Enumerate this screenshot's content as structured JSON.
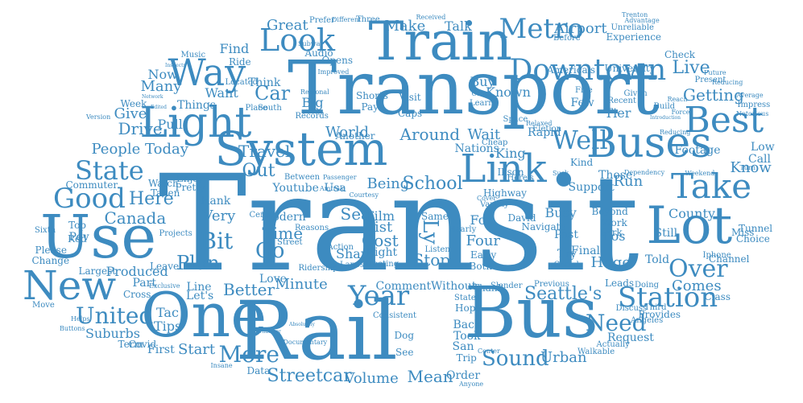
{
  "word_color": "#3d8bc0",
  "words": [
    "Transit",
    "Transport",
    "Rail",
    "Bus",
    "Train",
    "One",
    "Use",
    "Lot",
    "System",
    "Light",
    "Buses",
    "New",
    "Link",
    "Best",
    "Take",
    "Way",
    "Metro",
    "Downtown",
    "Station",
    "Look",
    "Good",
    "Year",
    "Over",
    "State",
    "Well",
    "Seattle's",
    "United",
    "More",
    "Need",
    "Sound",
    "Bit",
    "Car",
    "Live",
    "Streetcar",
    "Plan",
    "Better",
    "Go",
    "Getting",
    "Here",
    "Around",
    "School",
    "Stop",
    "Minute",
    "Ly",
    "Very",
    "Time",
    "Cost",
    "Mean",
    "World",
    "Make",
    "Great",
    "Travel",
    "Drive",
    "Give",
    "Canada",
    "People",
    "Today",
    "Airport",
    "Wait",
    "Urban",
    "Know",
    "County",
    "Comes",
    "Start",
    "Being",
    "Sea",
    "List",
    "Find",
    "Many",
    "Want",
    "Volume",
    "Tac",
    "Run",
    "Out",
    "Tips",
    "Suburbs",
    "Pov",
    "Film",
    "Fox",
    "Four",
    "Busy",
    "Los",
    "Huge",
    "Youtube",
    "Usa",
    "Nations",
    "King",
    "Rapid",
    "Known",
    "Buy",
    "Talk",
    "Channel",
    "Tunnel",
    "Low",
    "Call",
    "Tier",
    "Few",
    "Those",
    "Support",
    "Kind",
    "Told",
    "Still",
    "Miss",
    "Choice",
    "Beyond",
    "Work",
    "Park",
    "Final",
    "Try",
    "Past",
    "Navigate",
    "David",
    "Same",
    "Nearly",
    "Early",
    "Both",
    "Chord",
    "Leads",
    "Doing",
    "Third",
    "Angeles",
    "Provides",
    "Class",
    "Request",
    "Actually",
    "Walkable",
    "Discuss",
    "Previous",
    "Thank",
    "Slender",
    "Hope",
    "States",
    "Back",
    "Took",
    "San",
    "Trip",
    "Order",
    "See",
    "Dog",
    "Consistent",
    "Comment",
    "Without",
    "Cross",
    "Part",
    "Produced",
    "Largest",
    "Leave",
    "Love",
    "Ridership",
    "Share",
    "Lanes",
    "Action",
    "Meeting",
    "Right",
    "Listen",
    "Street",
    "Reasons",
    "Modern",
    "Projects",
    "Pretty",
    "Enjoy",
    "Rank",
    "Taken",
    "Watch",
    "Commuter",
    "Top",
    "Red",
    "Sixth",
    "Please",
    "Change",
    "Move",
    "Buttons",
    "Helps",
    "Covid",
    "Exclusive",
    "Term",
    "First",
    "Insane",
    "Data",
    "Let's",
    "Line",
    "Upon",
    "Think",
    "Located",
    "Ride",
    "Music",
    "Now",
    "Inspects",
    "Network",
    "Week",
    "Edited",
    "Things",
    "Pull",
    "Place",
    "South",
    "Big",
    "Records",
    "Regional",
    "Improved",
    "Opens",
    "Audio",
    "Subway",
    "Prefer",
    "Different",
    "Three",
    "Received",
    "Shorts",
    "Pay",
    "Visit",
    "Caps",
    "Cheap",
    "Coast",
    "Learn",
    "Five",
    "Recent",
    "Given",
    "Build",
    "Force",
    "Impress",
    "Average",
    "Notorious",
    "Turn",
    "Weekend",
    "Iphone",
    "Future",
    "Present",
    "Reducing",
    "Check",
    "University",
    "America's",
    "Before",
    "Experience",
    "Unreliable",
    "Trenton",
    "Advantage",
    "Another",
    "Footage",
    "Introduction",
    "Eletion",
    "Relaxed",
    "Dependency",
    "Here's",
    "Suck",
    "Ikson",
    "Highway",
    "Variety",
    "Cover",
    "Between",
    "Passenger",
    "Amtrak",
    "Courtesy",
    "Census",
    "Version",
    "Space",
    "Center",
    "Anyone",
    "Documentary",
    "Absolutely",
    "Whatever",
    "Reducing2",
    "Reach"
  ],
  "sample_words": [
    "Transit",
    "Transport",
    "Rail",
    "Bus",
    "Train",
    "One",
    "Use",
    "Lot"
  ]
}
